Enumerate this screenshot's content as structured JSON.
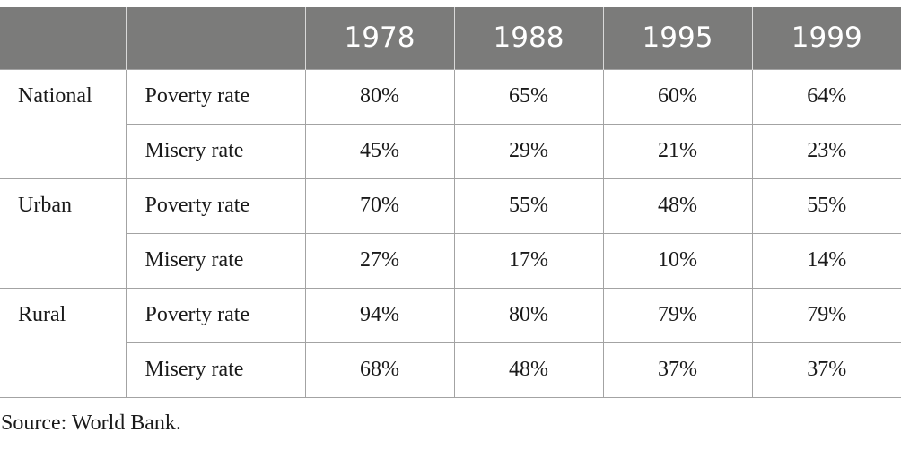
{
  "table": {
    "header": {
      "years": [
        "1978",
        "1988",
        "1995",
        "1999"
      ]
    },
    "groups": [
      {
        "region": "National",
        "rows": [
          {
            "metric": "Poverty rate",
            "values": [
              "80%",
              "65%",
              "60%",
              "64%"
            ]
          },
          {
            "metric": "Misery rate",
            "values": [
              "45%",
              "29%",
              "21%",
              "23%"
            ]
          }
        ]
      },
      {
        "region": "Urban",
        "rows": [
          {
            "metric": "Poverty rate",
            "values": [
              "70%",
              "55%",
              "48%",
              "55%"
            ]
          },
          {
            "metric": "Misery rate",
            "values": [
              "27%",
              "17%",
              "10%",
              "14%"
            ]
          }
        ]
      },
      {
        "region": "Rural",
        "rows": [
          {
            "metric": "Poverty rate",
            "values": [
              "94%",
              "80%",
              "79%",
              "79%"
            ]
          },
          {
            "metric": "Misery rate",
            "values": [
              "68%",
              "48%",
              "37%",
              "37%"
            ]
          }
        ]
      }
    ]
  },
  "source": "Source: World Bank.",
  "colors": {
    "header_background": "#7b7b7a",
    "header_text": "#ffffff",
    "grid_lines": "#a3a3a3"
  }
}
